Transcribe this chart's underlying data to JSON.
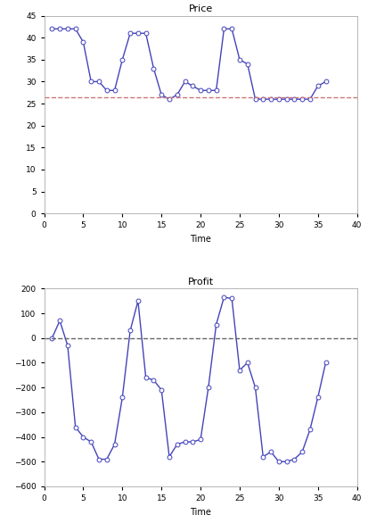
{
  "price_x": [
    1,
    2,
    3,
    4,
    5,
    6,
    7,
    8,
    9,
    10,
    11,
    12,
    13,
    14,
    15,
    16,
    17,
    18,
    19,
    20,
    21,
    22,
    23,
    24,
    25,
    26,
    27,
    28,
    29,
    30,
    31,
    32,
    33,
    34,
    35,
    36
  ],
  "price_y": [
    42,
    42,
    42,
    42,
    39,
    30,
    30,
    28,
    28,
    35,
    41,
    41,
    41,
    33,
    27,
    26,
    27,
    30,
    29,
    28,
    28,
    28,
    42,
    42,
    35,
    34,
    26,
    26,
    26,
    26,
    26,
    26,
    26,
    26,
    29,
    30
  ],
  "price_hline": 26.5,
  "price_xlim": [
    0,
    40
  ],
  "price_ylim": [
    0,
    45
  ],
  "price_yticks": [
    0,
    5,
    10,
    15,
    20,
    25,
    30,
    35,
    40,
    45
  ],
  "price_xticks": [
    0,
    5,
    10,
    15,
    20,
    25,
    30,
    35,
    40
  ],
  "price_title": "Price",
  "price_xlabel": "Time",
  "profit_x": [
    1,
    2,
    3,
    4,
    5,
    6,
    7,
    8,
    9,
    10,
    11,
    12,
    13,
    14,
    15,
    16,
    17,
    18,
    19,
    20,
    21,
    22,
    23,
    24,
    25,
    26,
    27,
    28,
    29,
    30,
    31,
    32,
    33,
    34,
    35,
    36
  ],
  "profit_y": [
    0,
    70,
    -30,
    -360,
    -400,
    -420,
    -490,
    -490,
    -430,
    -240,
    30,
    150,
    -160,
    -170,
    -210,
    -480,
    -430,
    -420,
    -420,
    -410,
    -200,
    55,
    165,
    160,
    -130,
    -100,
    -200,
    -480,
    -460,
    -500,
    -500,
    -490,
    -460,
    -370,
    -240,
    -100
  ],
  "profit_hline": 0,
  "profit_xlim": [
    0,
    40
  ],
  "profit_ylim": [
    -600,
    200
  ],
  "profit_yticks": [
    -600,
    -500,
    -400,
    -300,
    -200,
    -100,
    0,
    100,
    200
  ],
  "profit_xticks": [
    0,
    5,
    10,
    15,
    20,
    25,
    30,
    35,
    40
  ],
  "profit_title": "Profit",
  "profit_xlabel": "Time",
  "line_color": "#4444bb",
  "marker": "o",
  "marker_size": 3.5,
  "line_width": 1.0,
  "price_hline_color": "#cc7777",
  "profit_hline_color": "#666666",
  "hline_style": "--",
  "background_color": "#ffffff",
  "title_fontsize": 8,
  "label_fontsize": 7,
  "tick_fontsize": 6.5
}
